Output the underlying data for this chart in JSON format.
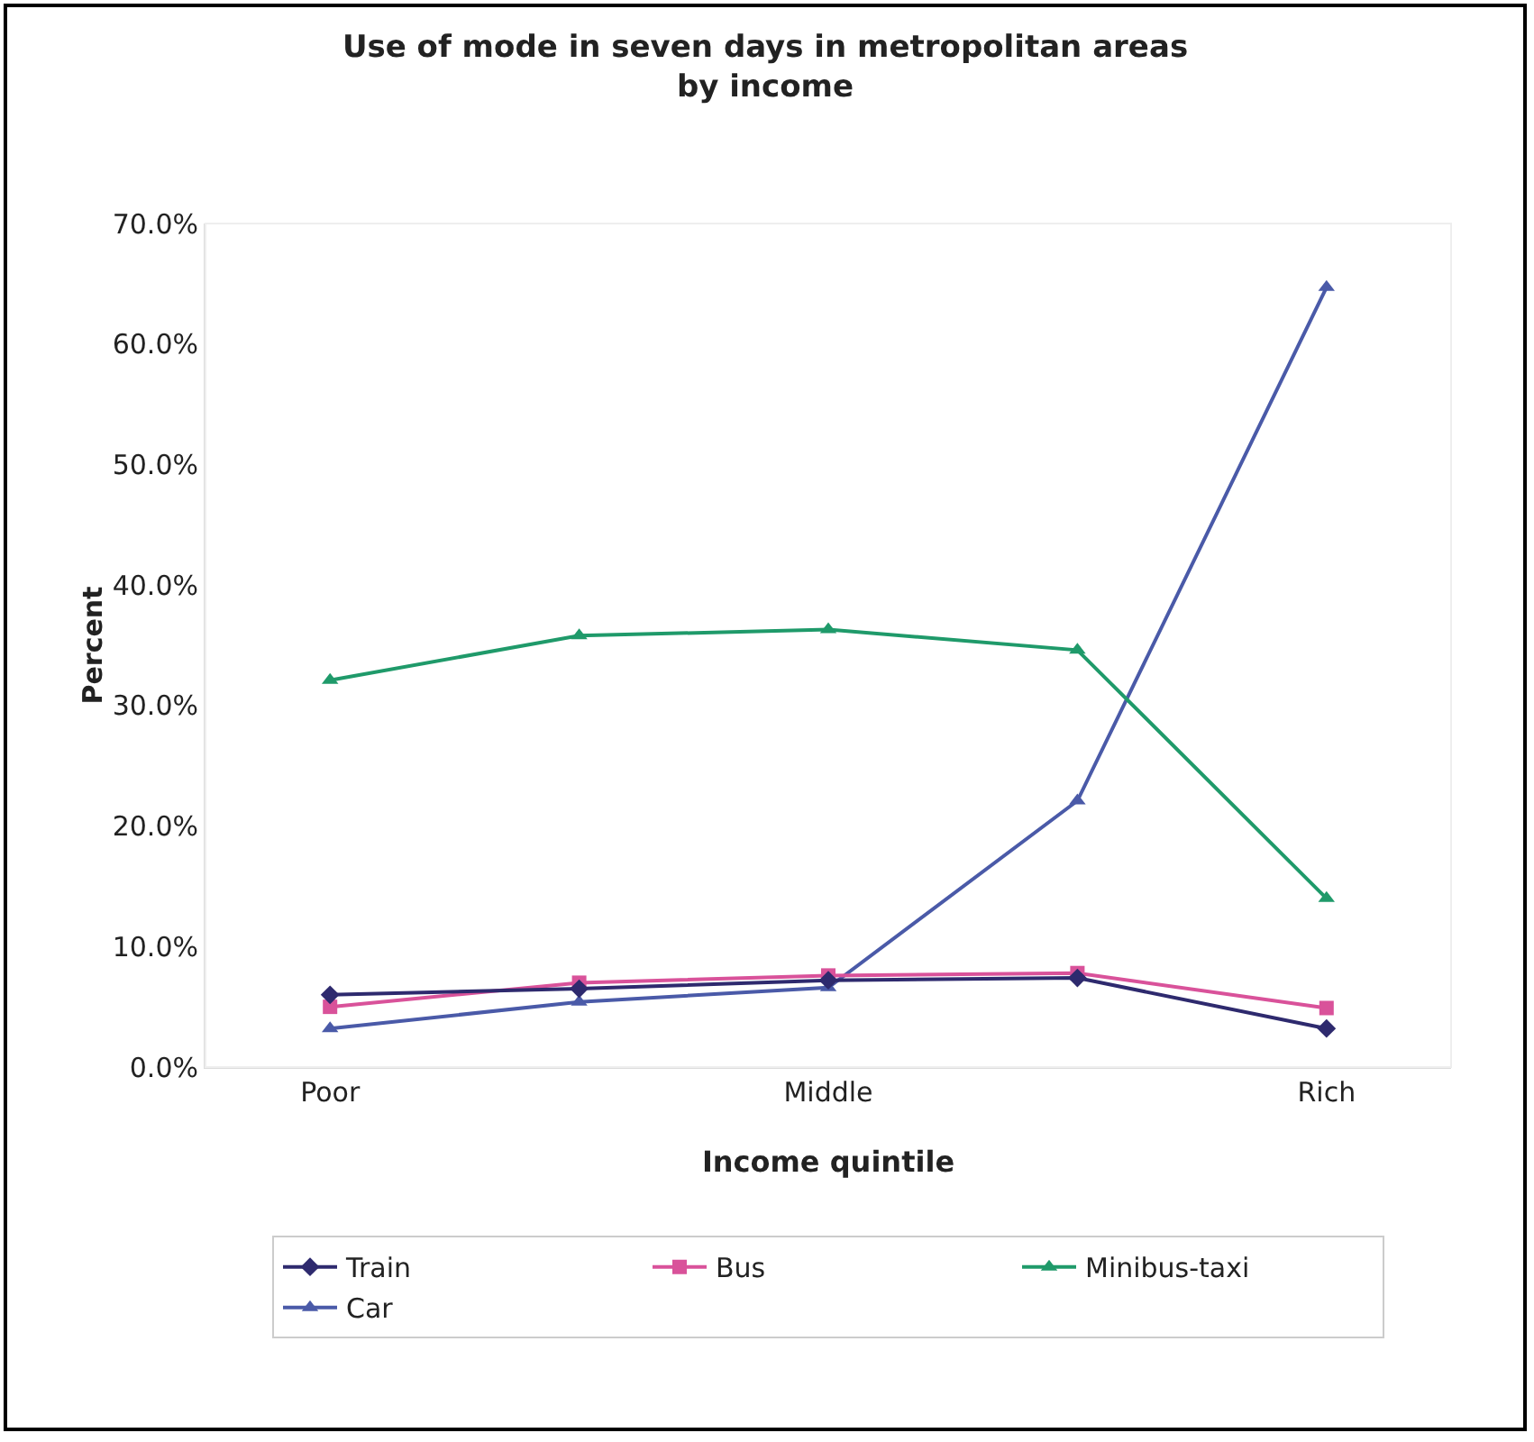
{
  "chart_data": {
    "type": "line",
    "title": "Use of mode in seven days in metropolitan areas\nby income",
    "xlabel": "Income quintile",
    "ylabel": "Percent",
    "categories": [
      "Poor",
      null,
      "Middle",
      null,
      "Rich"
    ],
    "series": [
      {
        "name": "Train",
        "color": "#2e2a6e",
        "marker": "diamond",
        "values": [
          6.0,
          6.5,
          7.2,
          7.4,
          3.2
        ]
      },
      {
        "name": "Bus",
        "color": "#d9529a",
        "marker": "square",
        "values": [
          5.0,
          7.0,
          7.6,
          7.8,
          4.9
        ]
      },
      {
        "name": "Minibus-taxi",
        "color": "#1f9a6a",
        "marker": "triangle",
        "values": [
          32.1,
          35.8,
          36.3,
          34.6,
          14.0
        ]
      },
      {
        "name": "Car",
        "color": "#4a5aa8",
        "marker": "triangle",
        "values": [
          3.2,
          5.4,
          6.6,
          22.1,
          64.7
        ]
      }
    ],
    "ylim": [
      0,
      70
    ],
    "yticks": [
      {
        "value": 0,
        "label": "0.0%"
      },
      {
        "value": 10,
        "label": "10.0%"
      },
      {
        "value": 20,
        "label": "20.0%"
      },
      {
        "value": 30,
        "label": "30.0%"
      },
      {
        "value": 40,
        "label": "40.0%"
      },
      {
        "value": 50,
        "label": "50.0%"
      },
      {
        "value": 60,
        "label": "60.0%"
      },
      {
        "value": 70,
        "label": "70.0%"
      }
    ],
    "grid": false,
    "legend": "bottom",
    "line_style": "solid"
  }
}
